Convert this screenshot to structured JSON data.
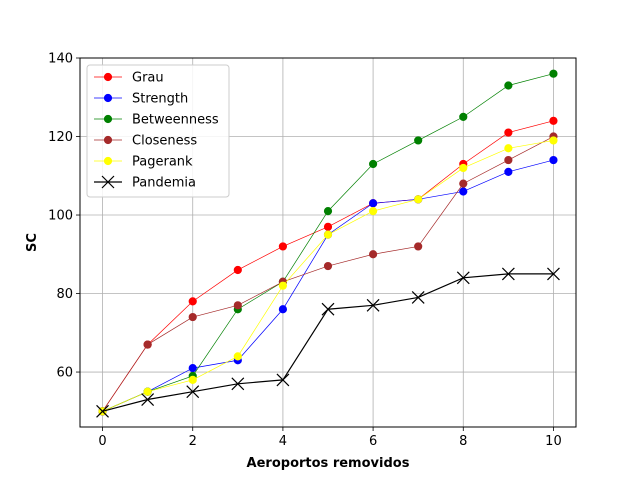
{
  "chart_data": {
    "type": "line",
    "title": "",
    "xlabel": "Aeroportos removidos",
    "ylabel": "SC",
    "x": [
      0,
      1,
      2,
      3,
      4,
      5,
      6,
      7,
      8,
      9,
      10
    ],
    "xlim": [
      -0.5,
      10.5
    ],
    "ylim": [
      46,
      140
    ],
    "xticks": [
      0,
      2,
      4,
      6,
      8,
      10
    ],
    "yticks": [
      60,
      80,
      100,
      120,
      140
    ],
    "grid": true,
    "legend_position": "upper-left",
    "series": [
      {
        "name": "Grau",
        "color": "#ff0000",
        "marker": "circle",
        "values": [
          50,
          67,
          78,
          86,
          92,
          97,
          103,
          104,
          113,
          121,
          124
        ]
      },
      {
        "name": "Strength",
        "color": "#0000ff",
        "marker": "circle",
        "values": [
          50,
          55,
          61,
          63,
          76,
          95,
          103,
          104,
          106,
          111,
          114
        ]
      },
      {
        "name": "Betweenness",
        "color": "#008000",
        "marker": "circle",
        "values": [
          50,
          55,
          59,
          76,
          83,
          101,
          113,
          119,
          125,
          133,
          136
        ]
      },
      {
        "name": "Closeness",
        "color": "#a52a2a",
        "marker": "circle",
        "values": [
          50,
          67,
          74,
          77,
          83,
          87,
          90,
          92,
          108,
          114,
          120
        ]
      },
      {
        "name": "Pagerank",
        "color": "#ffff00",
        "marker": "circle",
        "values": [
          50,
          55,
          58,
          64,
          82,
          95,
          101,
          104,
          112,
          117,
          119
        ]
      },
      {
        "name": "Pandemia",
        "color": "#000000",
        "marker": "x",
        "values": [
          50,
          53,
          55,
          57,
          58,
          76,
          77,
          79,
          84,
          85,
          85
        ]
      }
    ]
  }
}
